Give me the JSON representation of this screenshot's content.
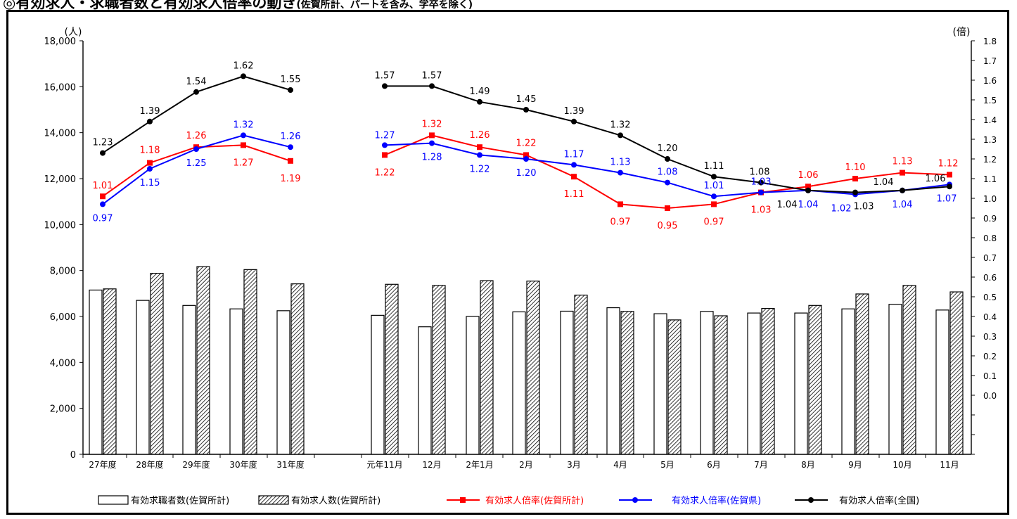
{
  "chart_data": {
    "type": "bar+line",
    "title": "有効求人・求職者数と有効求人倍率の動き",
    "title_note": "(佐賀所計、パートを含み、学卒を除く)",
    "y_left_unit": "(人)",
    "y_right_unit": "(倍)",
    "y_left_ticks": [
      "0",
      "2,000",
      "4,000",
      "6,000",
      "8,000",
      "10,000",
      "12,000",
      "14,000",
      "16,000",
      "18,000"
    ],
    "y_left_range": [
      0,
      18000
    ],
    "y_right_ticks": [
      "0.0",
      "0.1",
      "0.2",
      "0.3",
      "0.4",
      "0.5",
      "0.6",
      "0.7",
      "0.8",
      "0.9",
      "1.0",
      "1.1",
      "1.2",
      "1.3",
      "1.4",
      "1.5",
      "1.6",
      "1.7",
      "1.8"
    ],
    "y_right_range": [
      -0.3,
      1.8
    ],
    "grid": false,
    "legend_position": "bottom",
    "categories": [
      "27年度",
      "28年度",
      "29年度",
      "30年度",
      "31年度",
      "元年11月",
      "12月",
      "2年1月",
      "2月",
      "3月",
      "4月",
      "5月",
      "6月",
      "7月",
      "8月",
      "9月",
      "10月",
      "11月"
    ],
    "bar_series": [
      {
        "name": "有効求職者数(佐賀所計)",
        "pattern": "white",
        "values": [
          7150,
          6700,
          6480,
          6330,
          6250,
          6050,
          5550,
          6000,
          6200,
          6230,
          6380,
          6120,
          6220,
          6150,
          6150,
          6330,
          6530,
          6280
        ]
      },
      {
        "name": "有効求人数(佐賀所計)",
        "pattern": "hatched",
        "values": [
          7200,
          7880,
          8170,
          8040,
          7420,
          7400,
          7350,
          7560,
          7540,
          6930,
          6220,
          5850,
          6030,
          6350,
          6480,
          6980,
          7350,
          7070
        ]
      }
    ],
    "line_series": [
      {
        "name": "有効求人倍率(佐賀所計)",
        "color": "#ff0000",
        "marker": "square",
        "values": [
          1.01,
          1.18,
          1.26,
          1.27,
          1.19,
          1.22,
          1.32,
          1.26,
          1.22,
          1.11,
          0.97,
          0.95,
          0.97,
          1.03,
          1.06,
          1.1,
          1.13,
          1.12
        ],
        "labels": [
          "1.01",
          "1.18",
          "1.26",
          "1.27",
          "1.19",
          "1.22",
          "1.32",
          "1.26",
          "1.22",
          "1.11",
          "0.97",
          "0.95",
          "0.97",
          "1.03",
          "1.06",
          "1.10",
          "1.13",
          "1.12"
        ]
      },
      {
        "name": "有効求人倍率(佐賀県)",
        "color": "#0000ff",
        "marker": "circle",
        "values": [
          0.97,
          1.15,
          1.25,
          1.32,
          1.26,
          1.27,
          1.28,
          1.22,
          1.2,
          1.17,
          1.13,
          1.08,
          1.01,
          1.03,
          1.04,
          1.02,
          1.04,
          1.07
        ],
        "labels": [
          "0.97",
          "1.15",
          "1.25",
          "1.32",
          "1.26",
          "1.27",
          "1.28",
          "1.22",
          "1.20",
          "1.17",
          "1.13",
          "1.08",
          "1.01",
          "1.03",
          "1.04",
          "1.02",
          "1.04",
          "1.07"
        ]
      },
      {
        "name": "有効求人倍率(全国)",
        "color": "#000000",
        "marker": "circle",
        "values": [
          1.23,
          1.39,
          1.54,
          1.62,
          1.55,
          1.57,
          1.57,
          1.49,
          1.45,
          1.39,
          1.32,
          1.2,
          1.11,
          1.08,
          1.04,
          1.03,
          1.04,
          1.06
        ],
        "labels": [
          "1.23",
          "1.39",
          "1.54",
          "1.62",
          "1.55",
          "1.57",
          "1.57",
          "1.49",
          "1.45",
          "1.39",
          "1.32",
          "1.20",
          "1.11",
          "1.08",
          "1.04",
          "1.03",
          "1.04",
          "1.06"
        ]
      }
    ]
  }
}
